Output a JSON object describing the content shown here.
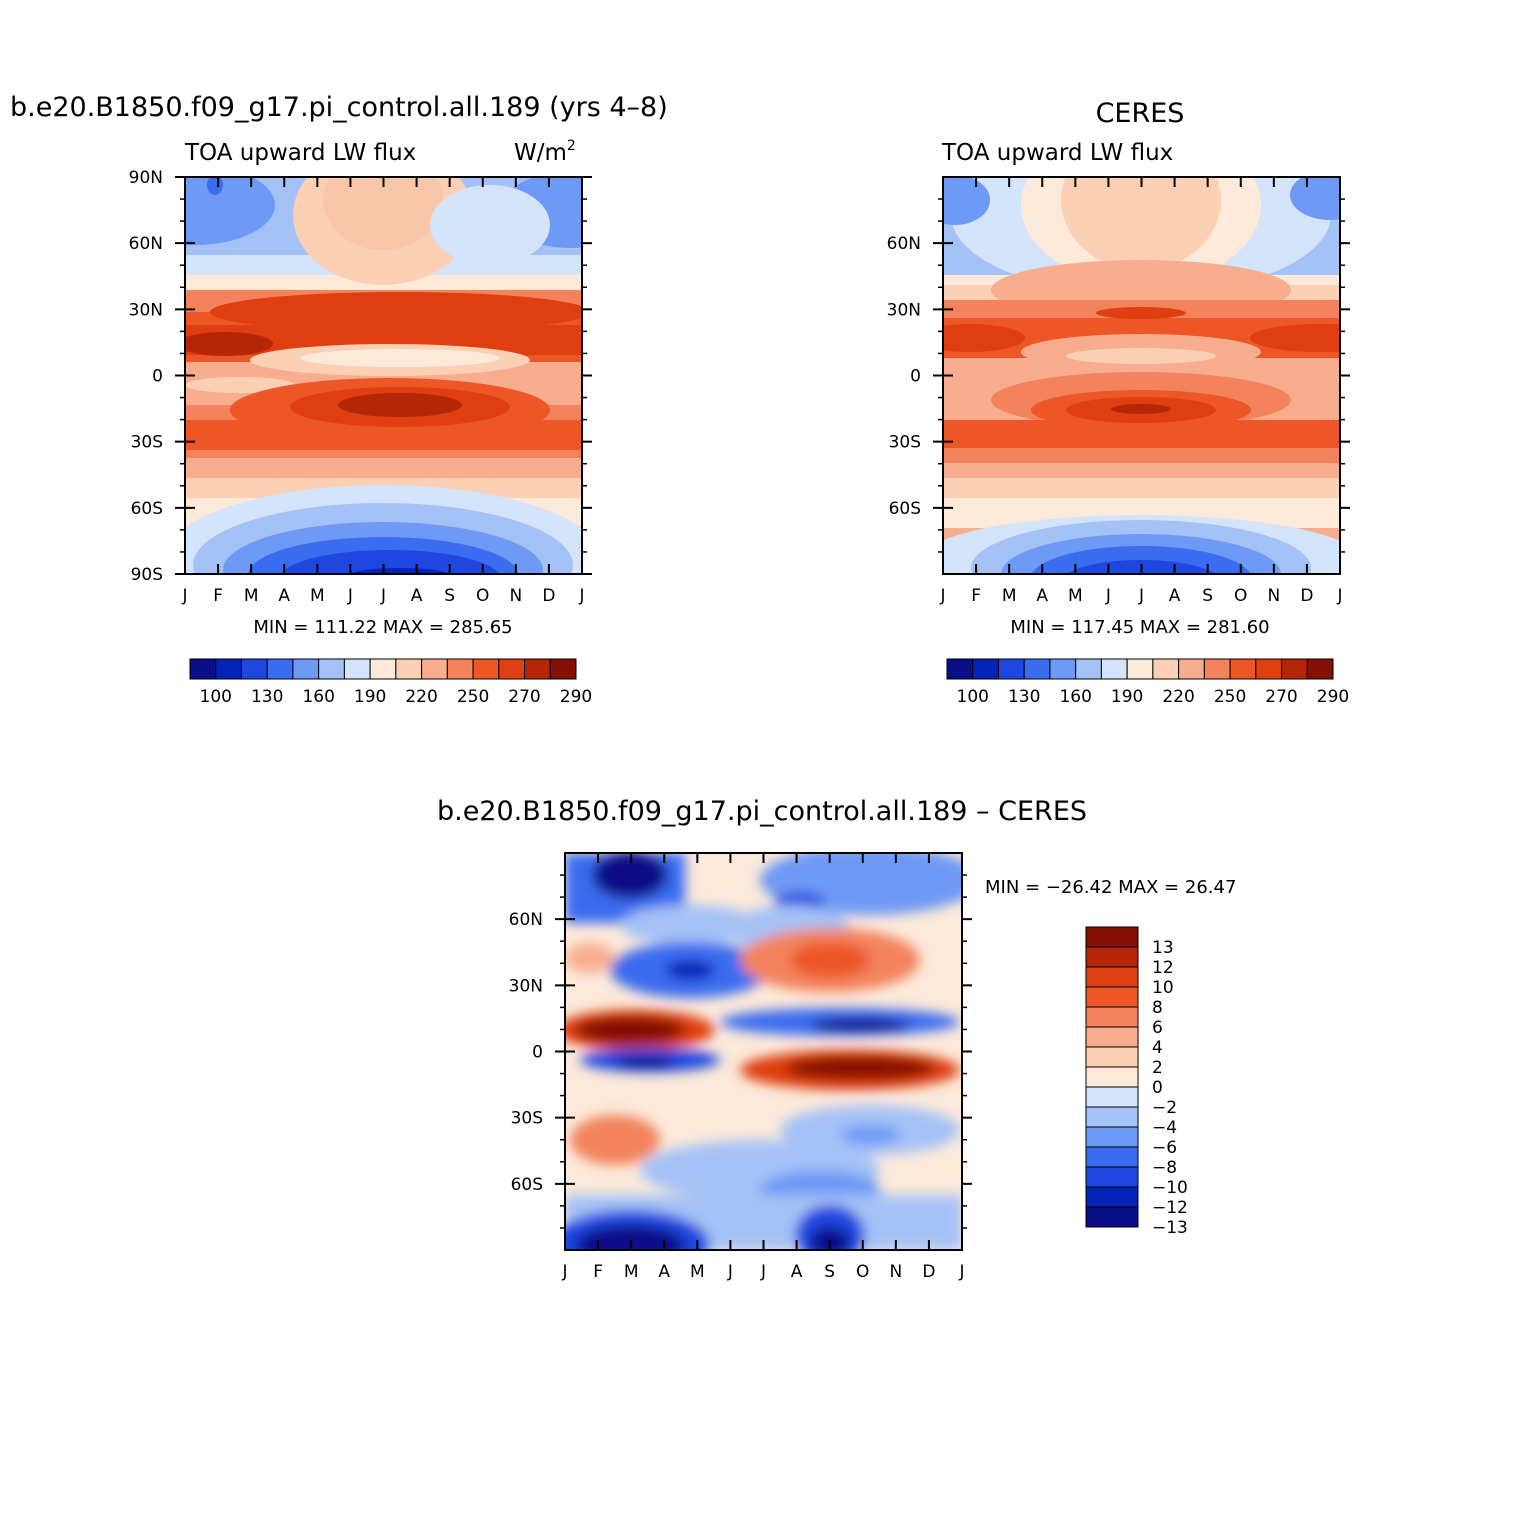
{
  "figure": {
    "panel1_title": "b.e20.B1850.f09_g17.pi_control.all.189 (yrs 4–8)",
    "panel2_title": "CERES",
    "panel3_title": "b.e20.B1850.f09_g17.pi_control.all.189 – CERES",
    "subtitle": "TOA upward LW flux",
    "units": "W/m",
    "units_sup": "2"
  },
  "panels": [
    {
      "minmax": "MIN = 111.22 MAX = 285.65"
    },
    {
      "minmax": "MIN = 117.45 MAX = 281.60"
    },
    {
      "minmax": "MIN = −26.42 MAX =  26.47"
    }
  ],
  "chart_data": [
    {
      "type": "heatmap",
      "title": "b.e20.B1850.f09_g17.pi_control.all.189 (yrs 4–8)",
      "subtitle": "TOA upward LW flux",
      "units": "W/m2",
      "x": [
        "J",
        "F",
        "M",
        "A",
        "M",
        "J",
        "J",
        "A",
        "S",
        "O",
        "N",
        "D",
        "J"
      ],
      "y_ticks": [
        "90N",
        "60N",
        "30N",
        "0",
        "30S",
        "60S",
        "90S"
      ],
      "ylim": [
        -90,
        90
      ],
      "min": 111.22,
      "max": 285.65,
      "colorbar": {
        "labels": [
          "100",
          "130",
          "160",
          "190",
          "220",
          "250",
          "270",
          "290"
        ],
        "colors": [
          "#0a0f88",
          "#0623b8",
          "#1f46df",
          "#3a6cef",
          "#6e9af5",
          "#a5c2f7",
          "#d4e4fa",
          "#fdeadb",
          "#fcd0b5",
          "#f8ae8e",
          "#f3835d",
          "#ed5626",
          "#de3e10",
          "#b52608",
          "#850f03"
        ]
      }
    },
    {
      "type": "heatmap",
      "title": "CERES",
      "subtitle": "TOA upward LW flux",
      "x": [
        "J",
        "F",
        "M",
        "A",
        "M",
        "J",
        "J",
        "A",
        "S",
        "O",
        "N",
        "D",
        "J"
      ],
      "y_ticks": [
        "60N",
        "30N",
        "0",
        "30S",
        "60S"
      ],
      "min": 117.45,
      "max": 281.6,
      "colorbar": {
        "labels": [
          "100",
          "130",
          "160",
          "190",
          "220",
          "250",
          "270",
          "290"
        ]
      }
    },
    {
      "type": "heatmap",
      "title": "b.e20.B1850.f09_g17.pi_control.all.189 – CERES",
      "x": [
        "J",
        "F",
        "M",
        "A",
        "M",
        "J",
        "J",
        "A",
        "S",
        "O",
        "N",
        "D",
        "J"
      ],
      "y_ticks": [
        "60N",
        "30N",
        "0",
        "30S",
        "60S"
      ],
      "min": -26.42,
      "max": 26.47,
      "colorbar": {
        "labels": [
          "13",
          "12",
          "10",
          "8",
          "6",
          "4",
          "2",
          "0",
          "−2",
          "−4",
          "−6",
          "−8",
          "−10",
          "−12",
          "−13"
        ],
        "colors": [
          "#850f03",
          "#b52608",
          "#de3e10",
          "#ed5626",
          "#f3835d",
          "#f8ae8e",
          "#fcd0b5",
          "#fdeadb",
          "#d4e4fa",
          "#a5c2f7",
          "#6e9af5",
          "#3a6cef",
          "#1f46df",
          "#0623b8",
          "#0a0f88"
        ]
      }
    }
  ]
}
